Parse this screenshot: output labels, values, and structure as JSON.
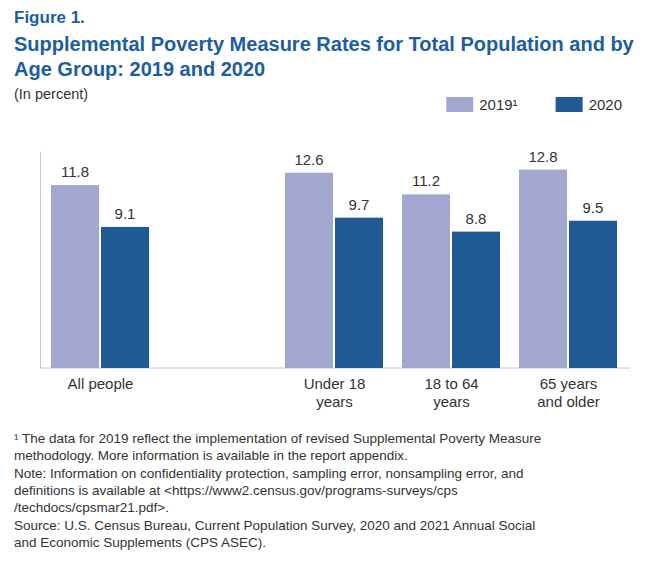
{
  "chart_data": {
    "type": "bar",
    "figure_label": "Figure 1.",
    "title": "Supplemental Poverty Measure Rates for Total Population and by Age Group: 2019 and 2020",
    "subtitle": "(In percent)",
    "categories": [
      "All people",
      "Under 18 years",
      "18 to 64 years",
      "65 years and older"
    ],
    "series": [
      {
        "name": "2019¹",
        "color": "#a2a7cf",
        "values": [
          11.8,
          12.6,
          11.2,
          12.8
        ]
      },
      {
        "name": "2020",
        "color": "#1f5a97",
        "values": [
          9.1,
          9.7,
          8.8,
          9.5
        ]
      }
    ],
    "ylim": [
      0,
      14
    ],
    "tick_labels": "x",
    "data_labels": true,
    "legend": "top-right",
    "grid": false,
    "notes": [
      [
        "¹ The data for 2019 reflect the implementation of revised Supplemental Poverty Measure",
        "methodology. More information is available in the report appendix."
      ],
      [
        "Note: Information on confidentiality protection, sampling error, nonsampling error, and",
        "definitions is available at <https://www2.census.gov/programs-surveys/cps",
        "/techdocs/cpsmar21.pdf>."
      ],
      [
        "Source: U.S. Census Bureau, Current Population Survey, 2020 and 2021 Annual Social",
        "and Economic Supplements (CPS ASEC)."
      ]
    ]
  }
}
